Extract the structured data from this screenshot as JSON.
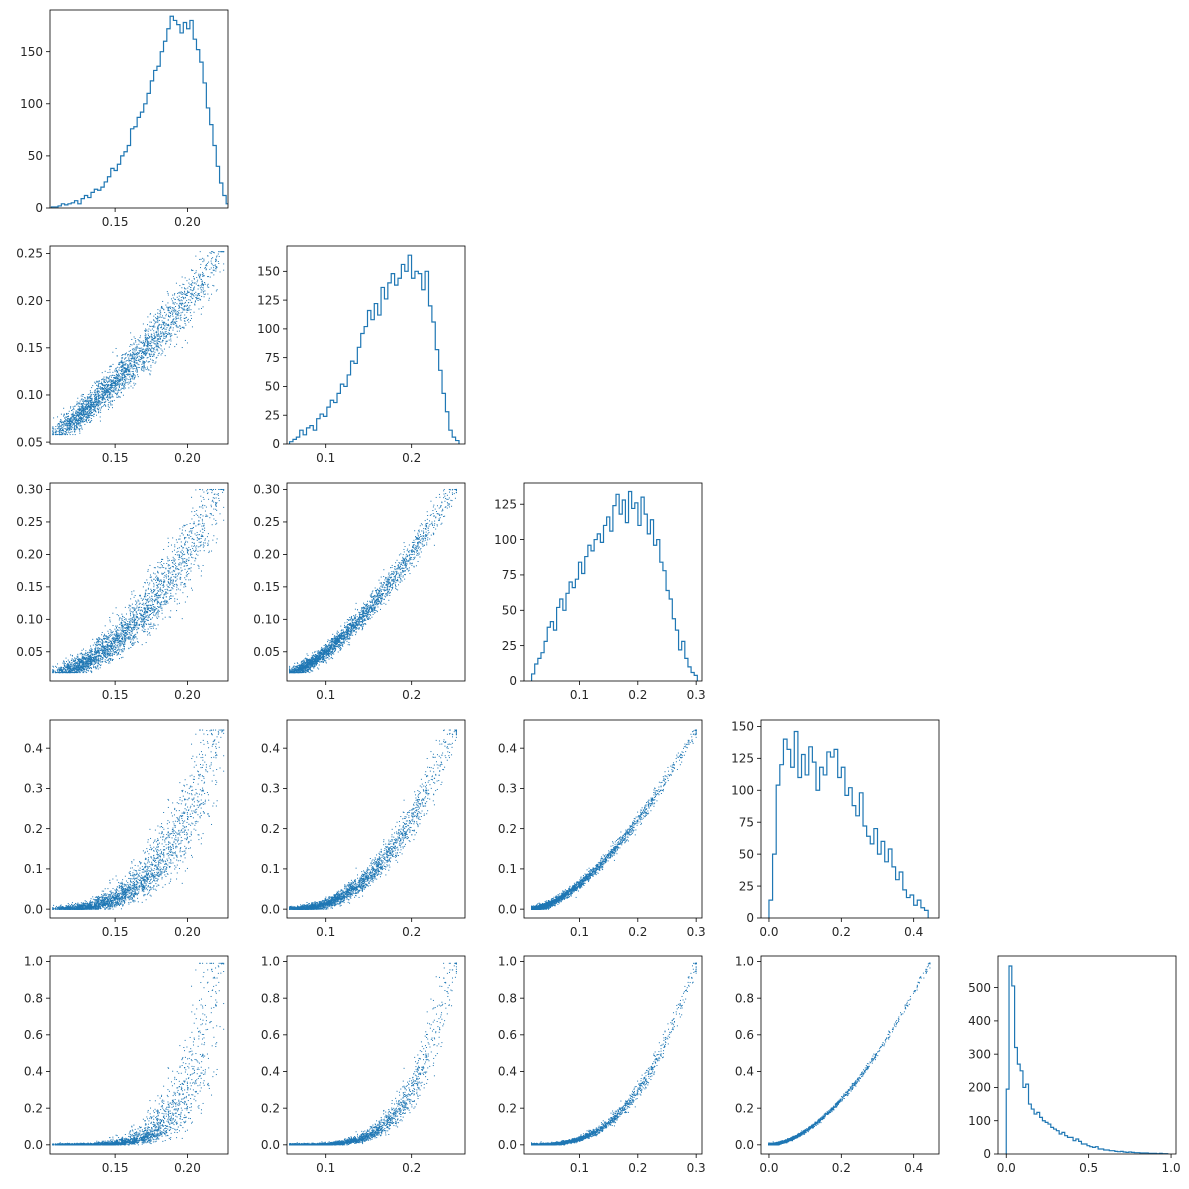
{
  "figure": {
    "layout": "corner-plot",
    "n_params": 5,
    "color": "#1f77b4"
  },
  "chart_data": [
    {
      "id": "hist-0",
      "type": "histogram-step",
      "row": 0,
      "col": 0,
      "xlim": [
        0.105,
        0.228
      ],
      "ylim": [
        0,
        190
      ],
      "xticks": [
        0.15,
        0.2
      ],
      "xtick_labels": [
        "0.15",
        "0.20"
      ],
      "yticks": [
        0,
        50,
        100,
        150
      ],
      "ytick_labels": [
        "0",
        "50",
        "100",
        "150"
      ],
      "bins": [
        0.106,
        0.229
      ],
      "counts": [
        1,
        1,
        2,
        4,
        3,
        4,
        5,
        7,
        4,
        9,
        12,
        10,
        15,
        18,
        17,
        20,
        25,
        30,
        38,
        36,
        42,
        50,
        54,
        60,
        76,
        78,
        87,
        92,
        100,
        110,
        122,
        132,
        136,
        150,
        160,
        172,
        184,
        180,
        176,
        168,
        178,
        172,
        180,
        162,
        152,
        140,
        120,
        96,
        80,
        60,
        40,
        24,
        12,
        4
      ]
    },
    {
      "id": "scatter-1-0",
      "type": "scatter",
      "row": 1,
      "col": 0,
      "xlim": [
        0.105,
        0.228
      ],
      "ylim": [
        0.048,
        0.258
      ],
      "xticks": [
        0.15,
        0.2
      ],
      "xtick_labels": [
        "0.15",
        "0.20"
      ],
      "yticks": [
        0.05,
        0.1,
        0.15,
        0.2,
        0.25
      ],
      "ytick_labels": [
        "0.05",
        "0.10",
        "0.15",
        "0.20",
        "0.25"
      ],
      "sample_x": "p0",
      "sample_y": "p1",
      "n_points": 2600
    },
    {
      "id": "hist-1",
      "type": "histogram-step",
      "row": 1,
      "col": 1,
      "xlim": [
        0.055,
        0.262
      ],
      "ylim": [
        0,
        172
      ],
      "xticks": [
        0.1,
        0.2
      ],
      "xtick_labels": [
        "0.1",
        "0.2"
      ],
      "yticks": [
        0,
        25,
        50,
        75,
        100,
        125,
        150
      ],
      "ytick_labels": [
        "0",
        "25",
        "50",
        "75",
        "100",
        "125",
        "150"
      ],
      "bins": [
        0.058,
        0.255
      ],
      "counts": [
        2,
        4,
        6,
        12,
        8,
        14,
        16,
        12,
        22,
        26,
        24,
        32,
        38,
        36,
        44,
        52,
        50,
        60,
        72,
        70,
        84,
        96,
        102,
        116,
        108,
        122,
        112,
        136,
        126,
        140,
        148,
        138,
        144,
        156,
        150,
        164,
        144,
        150,
        148,
        134,
        150,
        120,
        106,
        82,
        64,
        44,
        28,
        12,
        6,
        3
      ]
    },
    {
      "id": "scatter-2-0",
      "type": "scatter",
      "row": 2,
      "col": 0,
      "xlim": [
        0.105,
        0.228
      ],
      "ylim": [
        0.005,
        0.31
      ],
      "xticks": [
        0.15,
        0.2
      ],
      "xtick_labels": [
        "0.15",
        "0.20"
      ],
      "yticks": [
        0.05,
        0.1,
        0.15,
        0.2,
        0.25,
        0.3
      ],
      "ytick_labels": [
        "0.05",
        "0.10",
        "0.15",
        "0.20",
        "0.25",
        "0.30"
      ],
      "sample_x": "p0",
      "sample_y": "p2",
      "n_points": 2600
    },
    {
      "id": "scatter-2-1",
      "type": "scatter",
      "row": 2,
      "col": 1,
      "xlim": [
        0.055,
        0.262
      ],
      "ylim": [
        0.005,
        0.31
      ],
      "xticks": [
        0.1,
        0.2
      ],
      "xtick_labels": [
        "0.1",
        "0.2"
      ],
      "yticks": [
        0.05,
        0.1,
        0.15,
        0.2,
        0.25,
        0.3
      ],
      "ytick_labels": [
        "0.05",
        "0.10",
        "0.15",
        "0.20",
        "0.25",
        "0.30"
      ],
      "sample_x": "p1",
      "sample_y": "p2",
      "n_points": 2600
    },
    {
      "id": "hist-2",
      "type": "histogram-step",
      "row": 2,
      "col": 2,
      "xlim": [
        0.005,
        0.31
      ],
      "ylim": [
        0,
        140
      ],
      "xticks": [
        0.1,
        0.2,
        0.3
      ],
      "xtick_labels": [
        "0.1",
        "0.2",
        "0.3"
      ],
      "yticks": [
        0,
        25,
        50,
        75,
        100,
        125
      ],
      "ytick_labels": [
        "0",
        "25",
        "50",
        "75",
        "100",
        "125"
      ],
      "bins": [
        0.018,
        0.302
      ],
      "counts": [
        5,
        12,
        16,
        20,
        28,
        38,
        42,
        36,
        52,
        58,
        50,
        62,
        70,
        66,
        72,
        84,
        76,
        88,
        96,
        92,
        100,
        104,
        98,
        110,
        116,
        106,
        124,
        132,
        118,
        128,
        112,
        134,
        122,
        126,
        110,
        130,
        118,
        104,
        114,
        96,
        100,
        84,
        78,
        64,
        58,
        44,
        36,
        22,
        28,
        16,
        10,
        6,
        4
      ]
    },
    {
      "id": "scatter-3-0",
      "type": "scatter",
      "row": 3,
      "col": 0,
      "xlim": [
        0.105,
        0.228
      ],
      "ylim": [
        -0.022,
        0.47
      ],
      "xticks": [
        0.15,
        0.2
      ],
      "xtick_labels": [
        "0.15",
        "0.20"
      ],
      "yticks": [
        0.0,
        0.1,
        0.2,
        0.3,
        0.4
      ],
      "ytick_labels": [
        "0.0",
        "0.1",
        "0.2",
        "0.3",
        "0.4"
      ],
      "sample_x": "p0",
      "sample_y": "p3",
      "n_points": 2600
    },
    {
      "id": "scatter-3-1",
      "type": "scatter",
      "row": 3,
      "col": 1,
      "xlim": [
        0.055,
        0.262
      ],
      "ylim": [
        -0.022,
        0.47
      ],
      "xticks": [
        0.1,
        0.2
      ],
      "xtick_labels": [
        "0.1",
        "0.2"
      ],
      "yticks": [
        0.0,
        0.1,
        0.2,
        0.3,
        0.4
      ],
      "ytick_labels": [
        "0.0",
        "0.1",
        "0.2",
        "0.3",
        "0.4"
      ],
      "sample_x": "p1",
      "sample_y": "p3",
      "n_points": 2600
    },
    {
      "id": "scatter-3-2",
      "type": "scatter",
      "row": 3,
      "col": 2,
      "xlim": [
        0.005,
        0.31
      ],
      "ylim": [
        -0.022,
        0.47
      ],
      "xticks": [
        0.1,
        0.2,
        0.3
      ],
      "xtick_labels": [
        "0.1",
        "0.2",
        "0.3"
      ],
      "yticks": [
        0.0,
        0.1,
        0.2,
        0.3,
        0.4
      ],
      "ytick_labels": [
        "0.0",
        "0.1",
        "0.2",
        "0.3",
        "0.4"
      ],
      "sample_x": "p2",
      "sample_y": "p3",
      "n_points": 2600
    },
    {
      "id": "hist-3",
      "type": "histogram-step",
      "row": 3,
      "col": 3,
      "xlim": [
        -0.022,
        0.47
      ],
      "ylim": [
        0,
        155
      ],
      "xticks": [
        0.0,
        0.2,
        0.4
      ],
      "xtick_labels": [
        "0.0",
        "0.2",
        "0.4"
      ],
      "yticks": [
        0,
        25,
        50,
        75,
        100,
        125,
        150
      ],
      "ytick_labels": [
        "0",
        "25",
        "50",
        "75",
        "100",
        "125",
        "150"
      ],
      "bins": [
        0.0,
        0.44
      ],
      "counts": [
        14,
        50,
        104,
        120,
        140,
        132,
        118,
        146,
        110,
        128,
        112,
        134,
        122,
        100,
        118,
        112,
        130,
        126,
        132,
        110,
        118,
        96,
        102,
        88,
        80,
        98,
        72,
        64,
        58,
        70,
        50,
        60,
        44,
        54,
        40,
        30,
        36,
        22,
        16,
        18,
        10,
        14,
        8,
        6
      ]
    },
    {
      "id": "scatter-4-0",
      "type": "scatter",
      "row": 4,
      "col": 0,
      "xlim": [
        0.105,
        0.228
      ],
      "ylim": [
        -0.05,
        1.03
      ],
      "xticks": [
        0.15,
        0.2
      ],
      "xtick_labels": [
        "0.15",
        "0.20"
      ],
      "yticks": [
        0.0,
        0.2,
        0.4,
        0.6,
        0.8,
        1.0
      ],
      "ytick_labels": [
        "0.0",
        "0.2",
        "0.4",
        "0.6",
        "0.8",
        "1.0"
      ],
      "sample_x": "p0",
      "sample_y": "p4",
      "n_points": 2600
    },
    {
      "id": "scatter-4-1",
      "type": "scatter",
      "row": 4,
      "col": 1,
      "xlim": [
        0.055,
        0.262
      ],
      "ylim": [
        -0.05,
        1.03
      ],
      "xticks": [
        0.1,
        0.2
      ],
      "xtick_labels": [
        "0.1",
        "0.2"
      ],
      "yticks": [
        0.0,
        0.2,
        0.4,
        0.6,
        0.8,
        1.0
      ],
      "ytick_labels": [
        "0.0",
        "0.2",
        "0.4",
        "0.6",
        "0.8",
        "1.0"
      ],
      "sample_x": "p1",
      "sample_y": "p4",
      "n_points": 2600
    },
    {
      "id": "scatter-4-2",
      "type": "scatter",
      "row": 4,
      "col": 2,
      "xlim": [
        0.005,
        0.31
      ],
      "ylim": [
        -0.05,
        1.03
      ],
      "xticks": [
        0.1,
        0.2,
        0.3
      ],
      "xtick_labels": [
        "0.1",
        "0.2",
        "0.3"
      ],
      "yticks": [
        0.0,
        0.2,
        0.4,
        0.6,
        0.8,
        1.0
      ],
      "ytick_labels": [
        "0.0",
        "0.2",
        "0.4",
        "0.6",
        "0.8",
        "1.0"
      ],
      "sample_x": "p2",
      "sample_y": "p4",
      "n_points": 2600
    },
    {
      "id": "scatter-4-3",
      "type": "scatter",
      "row": 4,
      "col": 3,
      "xlim": [
        -0.022,
        0.47
      ],
      "ylim": [
        -0.05,
        1.03
      ],
      "xticks": [
        0.0,
        0.2,
        0.4
      ],
      "xtick_labels": [
        "0.0",
        "0.2",
        "0.4"
      ],
      "yticks": [
        0.0,
        0.2,
        0.4,
        0.6,
        0.8,
        1.0
      ],
      "ytick_labels": [
        "0.0",
        "0.2",
        "0.4",
        "0.6",
        "0.8",
        "1.0"
      ],
      "sample_x": "p3",
      "sample_y": "p4",
      "n_points": 2600
    },
    {
      "id": "hist-4",
      "type": "histogram-step",
      "row": 4,
      "col": 4,
      "xlim": [
        -0.05,
        1.03
      ],
      "ylim": [
        0,
        595
      ],
      "xticks": [
        0.0,
        0.5,
        1.0
      ],
      "xtick_labels": [
        "0.0",
        "0.5",
        "1.0"
      ],
      "yticks": [
        0,
        100,
        200,
        300,
        400,
        500
      ],
      "ytick_labels": [
        "0",
        "100",
        "200",
        "300",
        "400",
        "500"
      ],
      "bins": [
        0.0,
        0.98
      ],
      "counts": [
        195,
        565,
        505,
        320,
        270,
        250,
        200,
        210,
        150,
        135,
        120,
        125,
        110,
        100,
        95,
        90,
        80,
        75,
        70,
        60,
        65,
        55,
        50,
        50,
        40,
        45,
        38,
        30,
        30,
        25,
        22,
        20,
        22,
        15,
        15,
        12,
        12,
        10,
        10,
        8,
        7,
        8,
        6,
        5,
        6,
        5,
        4,
        4,
        3,
        3,
        3,
        2,
        2,
        2,
        1,
        2,
        1,
        1
      ]
    }
  ]
}
